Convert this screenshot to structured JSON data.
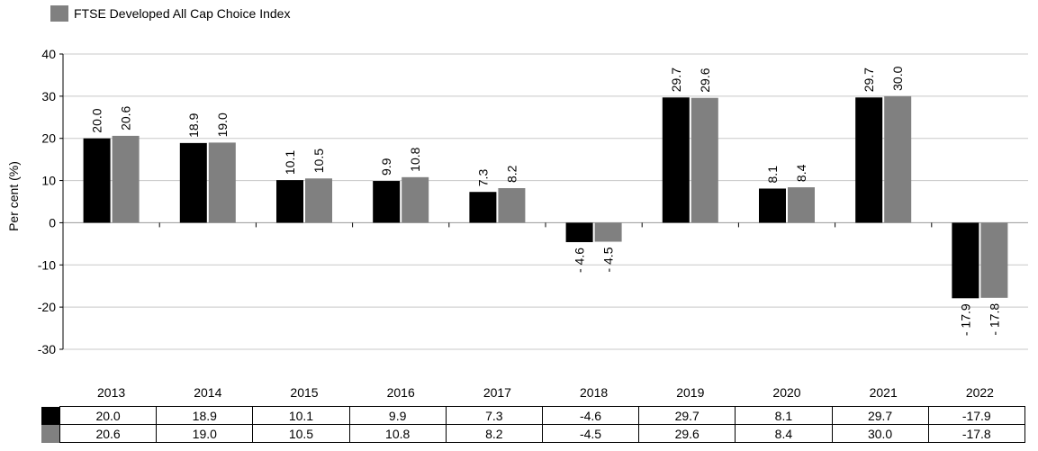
{
  "colors": {
    "series1": "#000000",
    "series2": "#808080",
    "grid": "#c8c8c8",
    "axis": "#000000"
  },
  "legend": {
    "label": "FTSE Developed All Cap Choice Index"
  },
  "chart_data": {
    "type": "bar",
    "title": "",
    "xlabel": "",
    "ylabel": "Per cent (%)",
    "ylim": [
      -30,
      40
    ],
    "yticks": [
      -30,
      -20,
      -10,
      0,
      10,
      20,
      30,
      40
    ],
    "grid": true,
    "categories": [
      "2013",
      "2014",
      "2015",
      "2016",
      "2017",
      "2018",
      "2019",
      "2020",
      "2021",
      "2022"
    ],
    "series": [
      {
        "values": [
          20.0,
          18.9,
          10.1,
          9.9,
          7.3,
          -4.6,
          29.7,
          8.1,
          29.7,
          -17.9
        ],
        "labels": [
          "20.0",
          "18.9",
          "10.1",
          "9.9",
          "7.3",
          "- 4.6",
          "29.7",
          "8.1",
          "29.7",
          "- 17.9"
        ],
        "color": "#000000"
      },
      {
        "name": "FTSE Developed All Cap Choice Index",
        "values": [
          20.6,
          19.0,
          10.5,
          10.8,
          8.2,
          -4.5,
          29.6,
          8.4,
          30.0,
          -17.8
        ],
        "labels": [
          "20.6",
          "19.0",
          "10.5",
          "10.8",
          "8.2",
          "- 4.5",
          "29.6",
          "8.4",
          "30.0",
          "- 17.8"
        ],
        "color": "#808080"
      }
    ]
  },
  "table": {
    "rows": [
      [
        "20.0",
        "18.9",
        "10.1",
        "9.9",
        "7.3",
        "-4.6",
        "29.7",
        "8.1",
        "29.7",
        "-17.9"
      ],
      [
        "20.6",
        "19.0",
        "10.5",
        "10.8",
        "8.2",
        "-4.5",
        "29.6",
        "8.4",
        "30.0",
        "-17.8"
      ]
    ]
  }
}
